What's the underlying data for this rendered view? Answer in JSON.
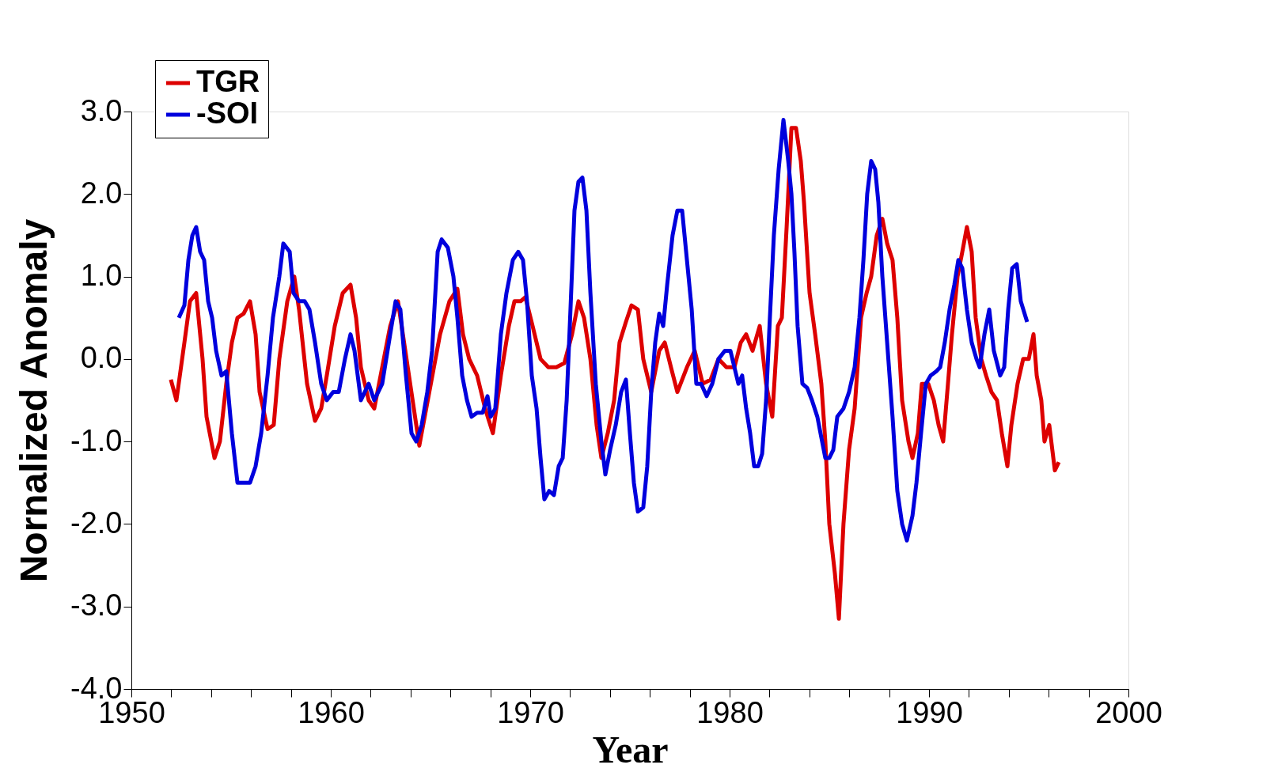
{
  "chart_data": {
    "type": "line",
    "xlabel": "Year",
    "ylabel": "Nornalized Anomaly",
    "xlim": [
      1950,
      2000
    ],
    "ylim": [
      -4,
      3
    ],
    "xticks": [
      1950,
      {
        "value": 1952,
        "label": null
      },
      {
        "value": 1954,
        "label": null
      },
      {
        "value": 1956,
        "label": null
      },
      {
        "value": 1958,
        "label": null
      },
      1960,
      {
        "value": 1962,
        "label": null
      },
      {
        "value": 1964,
        "label": null
      },
      {
        "value": 1966,
        "label": null
      },
      {
        "value": 1968,
        "label": null
      },
      1970,
      {
        "value": 1972,
        "label": null
      },
      {
        "value": 1974,
        "label": null
      },
      {
        "value": 1976,
        "label": null
      },
      {
        "value": 1978,
        "label": null
      },
      1980,
      {
        "value": 1982,
        "label": null
      },
      {
        "value": 1984,
        "label": null
      },
      {
        "value": 1986,
        "label": null
      },
      {
        "value": 1988,
        "label": null
      },
      1990,
      {
        "value": 1992,
        "label": null
      },
      {
        "value": 1994,
        "label": null
      },
      {
        "value": 1996,
        "label": null
      },
      {
        "value": 1998,
        "label": null
      },
      2000
    ],
    "yticks": [
      {
        "value": -4,
        "label": "-4.0"
      },
      {
        "value": -3,
        "label": "-3.0"
      },
      {
        "value": -2,
        "label": "-2.0"
      },
      {
        "value": -1,
        "label": "-1.0"
      },
      {
        "value": 0,
        "label": "0.0"
      },
      {
        "value": 1,
        "label": "1.0"
      },
      {
        "value": 2,
        "label": "2.0"
      },
      {
        "value": 3,
        "label": "3.0"
      }
    ],
    "grid": false,
    "legend": "top left",
    "line_style": "solid",
    "marker": "none",
    "series": [
      {
        "name": "TGR",
        "color": "#dd0000",
        "x": [
          1951.98,
          1952.26,
          1952.66,
          1952.94,
          1953.25,
          1953.57,
          1953.77,
          1954.17,
          1954.44,
          1954.76,
          1955.04,
          1955.32,
          1955.63,
          1955.95,
          1956.23,
          1956.43,
          1956.83,
          1957.14,
          1957.42,
          1957.82,
          1958.17,
          1958.41,
          1958.81,
          1959.21,
          1959.52,
          1959.8,
          1960.2,
          1960.6,
          1960.99,
          1961.27,
          1961.51,
          1961.9,
          1962.18,
          1962.58,
          1962.98,
          1963.37,
          1964.44,
          1965.48,
          1965.95,
          1966.35,
          1966.63,
          1966.94,
          1967.34,
          1967.74,
          1968.13,
          1968.53,
          1968.93,
          1969.21,
          1969.52,
          1969.76,
          1970.12,
          1970.52,
          1970.91,
          1971.31,
          1971.71,
          1972.1,
          1972.42,
          1972.7,
          1973.02,
          1973.33,
          1973.57,
          1973.89,
          1974.21,
          1974.48,
          1974.8,
          1975.08,
          1975.4,
          1975.67,
          1976.07,
          1976.47,
          1976.75,
          1977.06,
          1977.38,
          1977.86,
          1978.25,
          1978.65,
          1979.05,
          1979.44,
          1979.84,
          1980.24,
          1980.56,
          1980.83,
          1981.15,
          1981.51,
          1981.83,
          1982.14,
          1982.42,
          1982.62,
          1982.86,
          1983.1,
          1983.33,
          1983.57,
          1983.73,
          1984.01,
          1984.29,
          1984.6,
          1984.8,
          1985.0,
          1985.28,
          1985.48,
          1985.71,
          1985.99,
          1986.27,
          1986.59,
          1986.87,
          1987.1,
          1987.38,
          1987.66,
          1987.9,
          1988.17,
          1988.41,
          1988.65,
          1988.97,
          1989.17,
          1989.44,
          1989.64,
          1989.96,
          1990.24,
          1990.48,
          1990.71,
          1990.95,
          1991.15,
          1991.43,
          1991.67,
          1991.9,
          1992.14,
          1992.34,
          1992.62,
          1992.86,
          1993.13,
          1993.41,
          1993.65,
          1993.93,
          1994.13,
          1994.44,
          1994.72,
          1995.0,
          1995.24,
          1995.4,
          1995.63,
          1995.79,
          1996.03,
          1996.31,
          1996.51
        ],
        "values": [
          -0.25,
          -0.5,
          0.2,
          0.7,
          0.8,
          0.0,
          -0.7,
          -1.2,
          -1.0,
          -0.3,
          0.2,
          0.5,
          0.55,
          0.7,
          0.3,
          -0.4,
          -0.85,
          -0.8,
          0.0,
          0.7,
          1.0,
          0.6,
          -0.3,
          -0.75,
          -0.6,
          -0.2,
          0.4,
          0.8,
          0.9,
          0.5,
          -0.1,
          -0.5,
          -0.6,
          -0.1,
          0.4,
          0.7,
          -1.05,
          0.3,
          0.7,
          0.85,
          0.3,
          0.0,
          -0.2,
          -0.6,
          -0.9,
          -0.2,
          0.4,
          0.7,
          0.7,
          0.75,
          0.4,
          0.0,
          -0.1,
          -0.1,
          -0.05,
          0.3,
          0.7,
          0.5,
          0.0,
          -0.8,
          -1.2,
          -0.9,
          -0.5,
          0.2,
          0.45,
          0.65,
          0.6,
          0.0,
          -0.4,
          0.1,
          0.2,
          -0.1,
          -0.4,
          -0.1,
          0.1,
          -0.3,
          -0.25,
          0.0,
          -0.1,
          -0.1,
          0.2,
          0.3,
          0.1,
          0.4,
          -0.3,
          -0.7,
          0.4,
          0.5,
          1.6,
          2.8,
          2.8,
          2.4,
          1.9,
          0.8,
          0.3,
          -0.3,
          -1.0,
          -2.0,
          -2.6,
          -3.15,
          -2.0,
          -1.1,
          -0.6,
          0.5,
          0.8,
          1.0,
          1.5,
          1.7,
          1.4,
          1.2,
          0.5,
          -0.5,
          -1.0,
          -1.2,
          -0.9,
          -0.3,
          -0.3,
          -0.5,
          -0.8,
          -1.0,
          -0.3,
          0.3,
          1.0,
          1.3,
          1.6,
          1.3,
          0.5,
          0.0,
          -0.2,
          -0.4,
          -0.5,
          -0.9,
          -1.3,
          -0.8,
          -0.3,
          0.0,
          0.0,
          0.3,
          -0.2,
          -0.5,
          -1.0,
          -0.8,
          -1.35,
          -1.25
        ]
      },
      {
        "name": "-SOI",
        "color": "#0000dd",
        "x": [
          1952.38,
          1952.66,
          1952.86,
          1953.06,
          1953.25,
          1953.45,
          1953.65,
          1953.85,
          1954.05,
          1954.25,
          1954.52,
          1954.76,
          1955.04,
          1955.32,
          1955.63,
          1955.95,
          1956.23,
          1956.51,
          1956.83,
          1957.1,
          1957.42,
          1957.62,
          1957.94,
          1958.13,
          1958.41,
          1958.69,
          1958.93,
          1959.21,
          1959.52,
          1959.8,
          1960.12,
          1960.4,
          1960.71,
          1960.99,
          1961.19,
          1961.51,
          1961.9,
          1962.18,
          1962.58,
          1962.98,
          1963.25,
          1963.49,
          1963.77,
          1964.05,
          1964.29,
          1964.56,
          1964.84,
          1965.08,
          1965.36,
          1965.56,
          1965.87,
          1966.15,
          1966.35,
          1966.59,
          1966.83,
          1967.06,
          1967.34,
          1967.62,
          1967.86,
          1968.02,
          1968.25,
          1968.53,
          1968.81,
          1969.13,
          1969.4,
          1969.64,
          1969.84,
          1970.08,
          1970.32,
          1970.52,
          1970.71,
          1970.95,
          1971.19,
          1971.43,
          1971.63,
          1971.83,
          1972.02,
          1972.22,
          1972.42,
          1972.62,
          1972.82,
          1973.02,
          1973.29,
          1973.57,
          1973.77,
          1974.01,
          1974.29,
          1974.56,
          1974.8,
          1975.0,
          1975.2,
          1975.4,
          1975.67,
          1975.87,
          1976.07,
          1976.27,
          1976.47,
          1976.67,
          1976.87,
          1977.14,
          1977.38,
          1977.62,
          1977.86,
          1978.1,
          1978.33,
          1978.57,
          1978.85,
          1979.13,
          1979.44,
          1979.76,
          1980.04,
          1980.24,
          1980.44,
          1980.63,
          1980.83,
          1981.03,
          1981.23,
          1981.43,
          1981.63,
          1981.83,
          1982.02,
          1982.22,
          1982.46,
          1982.7,
          1982.94,
          1983.1,
          1983.25,
          1983.41,
          1983.65,
          1983.89,
          1984.13,
          1984.4,
          1984.6,
          1984.8,
          1985.0,
          1985.2,
          1985.4,
          1985.71,
          1985.99,
          1986.27,
          1986.51,
          1986.71,
          1986.9,
          1987.1,
          1987.3,
          1987.46,
          1987.66,
          1987.9,
          1988.17,
          1988.41,
          1988.65,
          1988.89,
          1989.17,
          1989.37,
          1989.6,
          1989.84,
          1990.08,
          1990.36,
          1990.56,
          1990.79,
          1991.03,
          1991.27,
          1991.47,
          1991.67,
          1991.9,
          1992.14,
          1992.38,
          1992.54,
          1992.78,
          1993.02,
          1993.25,
          1993.57,
          1993.77,
          1993.97,
          1994.17,
          1994.4,
          1994.6,
          1994.92
        ],
        "values": [
          0.5,
          0.65,
          1.2,
          1.5,
          1.6,
          1.3,
          1.2,
          0.7,
          0.5,
          0.1,
          -0.2,
          -0.15,
          -0.9,
          -1.5,
          -1.5,
          -1.5,
          -1.3,
          -0.9,
          -0.2,
          0.5,
          1.0,
          1.4,
          1.3,
          0.8,
          0.7,
          0.7,
          0.6,
          0.2,
          -0.3,
          -0.5,
          -0.4,
          -0.4,
          0.0,
          0.3,
          0.1,
          -0.5,
          -0.3,
          -0.5,
          -0.3,
          0.3,
          0.7,
          0.6,
          -0.2,
          -0.9,
          -1.0,
          -0.8,
          -0.4,
          0.1,
          1.3,
          1.45,
          1.35,
          1.0,
          0.5,
          -0.2,
          -0.5,
          -0.7,
          -0.65,
          -0.65,
          -0.45,
          -0.7,
          -0.6,
          0.3,
          0.8,
          1.2,
          1.3,
          1.2,
          0.7,
          -0.2,
          -0.6,
          -1.2,
          -1.7,
          -1.6,
          -1.65,
          -1.3,
          -1.2,
          -0.5,
          0.6,
          1.8,
          2.15,
          2.2,
          1.8,
          0.8,
          -0.3,
          -1.0,
          -1.4,
          -1.1,
          -0.8,
          -0.4,
          -0.25,
          -0.9,
          -1.5,
          -1.85,
          -1.8,
          -1.3,
          -0.4,
          0.2,
          0.55,
          0.4,
          0.9,
          1.5,
          1.8,
          1.8,
          1.2,
          0.6,
          -0.3,
          -0.3,
          -0.45,
          -0.3,
          0.0,
          0.1,
          0.1,
          -0.1,
          -0.3,
          -0.2,
          -0.6,
          -0.9,
          -1.3,
          -1.3,
          -1.15,
          -0.5,
          0.5,
          1.5,
          2.3,
          2.9,
          2.4,
          2.0,
          1.3,
          0.4,
          -0.3,
          -0.35,
          -0.5,
          -0.7,
          -0.95,
          -1.2,
          -1.2,
          -1.1,
          -0.7,
          -0.6,
          -0.4,
          -0.1,
          0.5,
          1.2,
          2.0,
          2.4,
          2.3,
          1.9,
          1.0,
          0.2,
          -0.7,
          -1.6,
          -2.0,
          -2.2,
          -1.9,
          -1.5,
          -0.9,
          -0.3,
          -0.2,
          -0.15,
          -0.1,
          0.2,
          0.6,
          0.9,
          1.2,
          1.1,
          0.6,
          0.2,
          0.0,
          -0.1,
          0.3,
          0.6,
          0.1,
          -0.2,
          -0.1,
          0.6,
          1.1,
          1.15,
          0.7,
          0.45
        ]
      }
    ]
  }
}
